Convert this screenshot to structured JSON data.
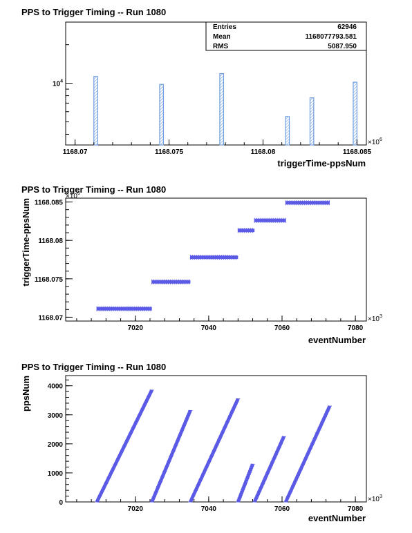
{
  "chart_data": [
    {
      "type": "bar",
      "title": "PPS to Trigger Timing -- Run 1080",
      "xlabel": "triggerTime-ppsNum",
      "ylabel": "",
      "x_multiplier": "×10^6",
      "x_tick_labels": [
        "1168.07",
        "1168.075",
        "1168.08",
        "1168.085"
      ],
      "x_ticks": [
        1168.07,
        1168.075,
        1168.08,
        1168.085
      ],
      "xlim": [
        1168.0695,
        1168.0855
      ],
      "yscale": "log",
      "y_tick_label": "10^4",
      "y_tick": 10000,
      "ylim": [
        3300,
        30000
      ],
      "bars": [
        {
          "x": 1168.0711,
          "value": 11300
        },
        {
          "x": 1168.0746,
          "value": 9800
        },
        {
          "x": 1168.0778,
          "value": 11900
        },
        {
          "x": 1168.0813,
          "value": 5500
        },
        {
          "x": 1168.0826,
          "value": 7700
        },
        {
          "x": 1168.0849,
          "value": 10200
        }
      ],
      "stats": {
        "entries_label": "Entries",
        "entries": "62946",
        "mean_label": "Mean",
        "mean": "1168077793.581",
        "rms_label": "RMS",
        "rms": "5087.950"
      },
      "fill_color": "#6e9de0",
      "grid": false
    },
    {
      "type": "scatter",
      "title": "PPS to Trigger Timing -- Run 1080",
      "xlabel": "eventNumber",
      "ylabel": "triggerTime-ppsNum",
      "x_multiplier": "×10^3",
      "y_multiplier": "×10^6",
      "x_tick_labels": [
        "7020",
        "7040",
        "7060",
        "7080"
      ],
      "x_ticks": [
        7020,
        7040,
        7060,
        7080
      ],
      "y_tick_labels": [
        "1168.07",
        "1168.075",
        "1168.08",
        "1168.085"
      ],
      "y_ticks": [
        1168.07,
        1168.075,
        1168.08,
        1168.085
      ],
      "xlim": [
        7001,
        7083
      ],
      "ylim": [
        1168.0695,
        1168.0855
      ],
      "segments": [
        {
          "x": [
            7009.5,
            7024.5
          ],
          "y": 1168.0711
        },
        {
          "x": [
            7024.5,
            7035.0
          ],
          "y": 1168.0746
        },
        {
          "x": [
            7035.0,
            7048.0
          ],
          "y": 1168.0778
        },
        {
          "x": [
            7048.0,
            7052.5
          ],
          "y": 1168.0813
        },
        {
          "x": [
            7052.5,
            7061.0
          ],
          "y": 1168.0826
        },
        {
          "x": [
            7061.0,
            7073.0
          ],
          "y": 1168.0849
        }
      ],
      "color": "#5a5ae6",
      "grid": false
    },
    {
      "type": "scatter",
      "title": "PPS to Trigger Timing -- Run 1080",
      "xlabel": "eventNumber",
      "ylabel": "ppsNum",
      "x_multiplier": "×10^3",
      "x_tick_labels": [
        "7020",
        "7040",
        "7060",
        "7080"
      ],
      "x_ticks": [
        7020,
        7040,
        7060,
        7080
      ],
      "y_tick_labels": [
        "0",
        "1000",
        "2000",
        "3000",
        "4000"
      ],
      "y_ticks": [
        0,
        1000,
        2000,
        3000,
        4000
      ],
      "xlim": [
        7001,
        7083
      ],
      "ylim": [
        0,
        4350
      ],
      "segments": [
        {
          "x": [
            7009.5,
            7024.5
          ],
          "y": [
            0,
            3850
          ]
        },
        {
          "x": [
            7024.5,
            7035.0
          ],
          "y": [
            0,
            3150
          ]
        },
        {
          "x": [
            7035.0,
            7048.0
          ],
          "y": [
            0,
            3550
          ]
        },
        {
          "x": [
            7048.0,
            7052.0
          ],
          "y": [
            0,
            1300
          ]
        },
        {
          "x": [
            7052.5,
            7060.5
          ],
          "y": [
            0,
            2250
          ]
        },
        {
          "x": [
            7061.0,
            7073.0
          ],
          "y": [
            0,
            3300
          ]
        }
      ],
      "color": "#5a5ae6",
      "grid": false
    }
  ]
}
